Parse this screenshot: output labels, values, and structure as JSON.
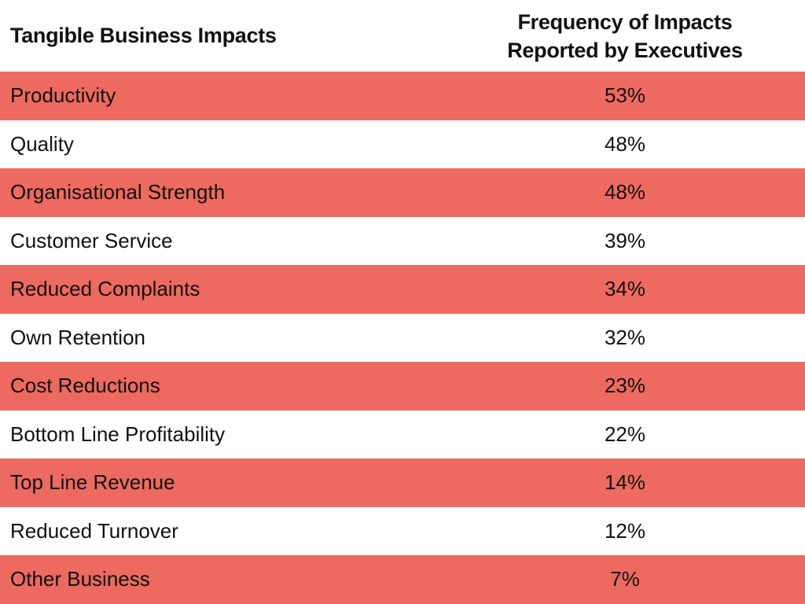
{
  "chart_data": {
    "type": "table",
    "columns": [
      "Tangible Business Impacts",
      "Frequency of Impacts Reported by Executives"
    ],
    "header_lines": [
      "Frequency of Impacts",
      "Reported by Executives"
    ],
    "rows": [
      {
        "label": "Productivity",
        "value": "53%"
      },
      {
        "label": "Quality",
        "value": "48%"
      },
      {
        "label": "Organisational Strength",
        "value": "48%"
      },
      {
        "label": "Customer Service",
        "value": "39%"
      },
      {
        "label": "Reduced Complaints",
        "value": "34%"
      },
      {
        "label": "Own Retention",
        "value": "32%"
      },
      {
        "label": "Cost Reductions",
        "value": "23%"
      },
      {
        "label": "Bottom Line Profitability",
        "value": "22%"
      },
      {
        "label": "Top Line Revenue",
        "value": "14%"
      },
      {
        "label": "Reduced Turnover",
        "value": "12%"
      },
      {
        "label": "Other Business",
        "value": "7%"
      }
    ],
    "stripe_color": "#ec6a60"
  }
}
